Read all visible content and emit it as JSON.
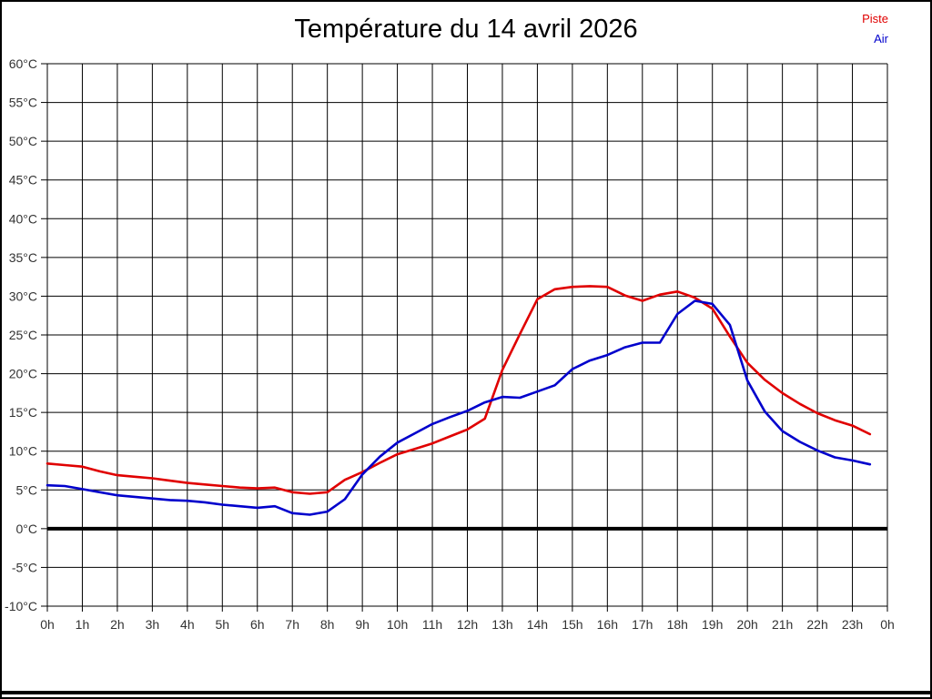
{
  "header": {
    "title": "Température du 14 avril 2026"
  },
  "legend": {
    "items": [
      {
        "label": "Piste",
        "color": "#e00000"
      },
      {
        "label": "Air",
        "color": "#0000cc"
      }
    ]
  },
  "chart_data": {
    "type": "line",
    "title": "Température du 14 avril 2026",
    "xlabel": "",
    "ylabel": "",
    "xlim": [
      0,
      24
    ],
    "ylim": [
      -10,
      60
    ],
    "grid": true,
    "zero_line_value": 0,
    "legend_position": "top-right",
    "x_tick_values": [
      0,
      1,
      2,
      3,
      4,
      5,
      6,
      7,
      8,
      9,
      10,
      11,
      12,
      13,
      14,
      15,
      16,
      17,
      18,
      19,
      20,
      21,
      22,
      23,
      24
    ],
    "x_tick_labels": [
      "0h",
      "1h",
      "2h",
      "3h",
      "4h",
      "5h",
      "6h",
      "7h",
      "8h",
      "9h",
      "10h",
      "11h",
      "12h",
      "13h",
      "14h",
      "15h",
      "16h",
      "17h",
      "18h",
      "19h",
      "20h",
      "21h",
      "22h",
      "23h",
      "0h"
    ],
    "y_tick_values": [
      60,
      55,
      50,
      45,
      40,
      35,
      30,
      25,
      20,
      15,
      10,
      5,
      0,
      -5,
      -10
    ],
    "y_tick_labels": [
      "60°C",
      "55°C",
      "50°C",
      "45°C",
      "40°C",
      "35°C",
      "30°C",
      "25°C",
      "20°C",
      "15°C",
      "10°C",
      "5°C",
      "0°C",
      "-5°C",
      "-10°C"
    ],
    "x": [
      0,
      0.5,
      1,
      1.5,
      2,
      2.5,
      3,
      3.5,
      4,
      4.5,
      5,
      5.5,
      6,
      6.5,
      7,
      7.5,
      8,
      8.5,
      9,
      9.5,
      10,
      10.5,
      11,
      11.5,
      12,
      12.5,
      13,
      13.5,
      14,
      14.5,
      15,
      15.5,
      16,
      16.5,
      17,
      17.5,
      18,
      18.5,
      19,
      19.5,
      20,
      20.5,
      21,
      21.5,
      22,
      22.5,
      23,
      23.5
    ],
    "series": [
      {
        "name": "Piste",
        "color": "#e00000",
        "values": [
          8.4,
          8.2,
          8.0,
          7.4,
          6.9,
          6.7,
          6.5,
          6.2,
          5.9,
          5.7,
          5.5,
          5.3,
          5.2,
          5.3,
          4.7,
          4.5,
          4.7,
          6.3,
          7.3,
          8.5,
          9.6,
          10.3,
          11.0,
          11.9,
          12.8,
          14.2,
          20.5,
          25.1,
          29.6,
          30.9,
          31.2,
          31.3,
          31.2,
          30.1,
          29.4,
          30.2,
          30.6,
          29.8,
          28.4,
          24.8,
          21.4,
          19.2,
          17.5,
          16.1,
          14.9,
          14.0,
          13.3,
          12.2
        ]
      },
      {
        "name": "Air",
        "color": "#0000cc",
        "values": [
          5.6,
          5.5,
          5.1,
          4.7,
          4.3,
          4.1,
          3.9,
          3.7,
          3.6,
          3.4,
          3.1,
          2.9,
          2.7,
          2.9,
          2.0,
          1.8,
          2.2,
          3.8,
          7.0,
          9.3,
          11.1,
          12.3,
          13.5,
          14.4,
          15.2,
          16.3,
          17.0,
          16.9,
          17.7,
          18.5,
          20.6,
          21.7,
          22.4,
          23.4,
          24.0,
          24.0,
          27.7,
          29.4,
          29.0,
          26.3,
          19.1,
          15.1,
          12.6,
          11.2,
          10.1,
          9.2,
          8.8,
          8.3
        ]
      }
    ]
  }
}
